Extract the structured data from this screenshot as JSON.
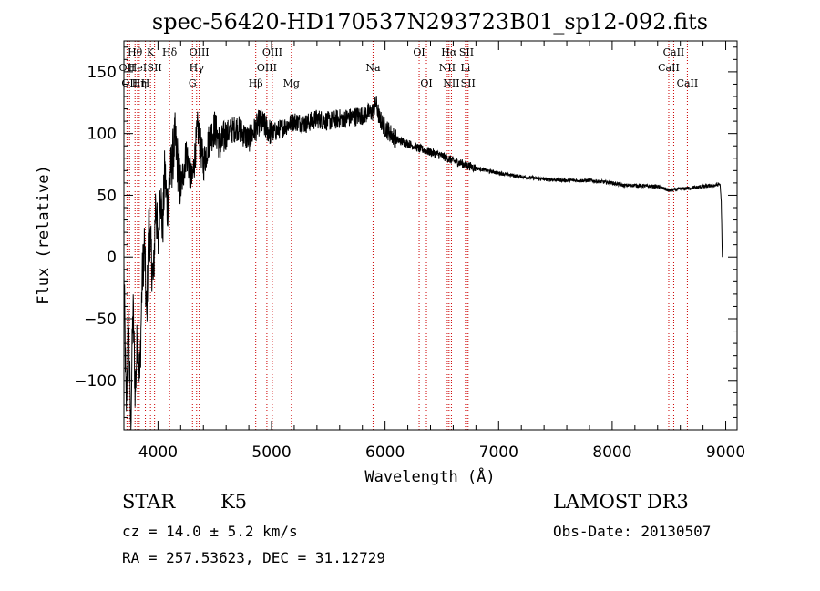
{
  "chart_data": {
    "type": "line",
    "title": "spec-56420-HD170537N293723B01_sp12-092.fits",
    "xlabel": "Wavelength (Å)",
    "ylabel": "Flux (relative)",
    "xlim": [
      3700,
      9100
    ],
    "ylim": [
      -140,
      175
    ],
    "xticks": [
      4000,
      5000,
      6000,
      7000,
      8000,
      9000
    ],
    "yticks": [
      -100,
      -50,
      0,
      50,
      100,
      150
    ],
    "series": [
      {
        "name": "flux",
        "x": [
          3700,
          3720,
          3740,
          3760,
          3780,
          3800,
          3820,
          3840,
          3860,
          3880,
          3900,
          3920,
          3940,
          3960,
          3980,
          4000,
          4020,
          4040,
          4060,
          4080,
          4100,
          4150,
          4200,
          4250,
          4300,
          4350,
          4400,
          4450,
          4500,
          4550,
          4600,
          4700,
          4800,
          4900,
          5000,
          5100,
          5200,
          5300,
          5400,
          5500,
          5600,
          5700,
          5800,
          5900,
          5920,
          5950,
          6000,
          6100,
          6200,
          6300,
          6400,
          6500,
          6600,
          6700,
          6800,
          6900,
          7000,
          7200,
          7400,
          7600,
          7800,
          8000,
          8100,
          8200,
          8400,
          8500,
          8600,
          8700,
          8800,
          8900,
          8950,
          8960,
          8970
        ],
        "values": [
          -10,
          -125,
          -50,
          -138,
          -40,
          -110,
          -60,
          -100,
          -20,
          10,
          -50,
          30,
          0,
          -20,
          50,
          5,
          60,
          20,
          70,
          40,
          60,
          95,
          55,
          85,
          60,
          105,
          75,
          95,
          105,
          90,
          100,
          105,
          95,
          110,
          100,
          105,
          110,
          108,
          112,
          110,
          112,
          113,
          115,
          118,
          125,
          112,
          105,
          95,
          92,
          88,
          85,
          82,
          78,
          75,
          72,
          70,
          68,
          65,
          63,
          62,
          62,
          60,
          58,
          58,
          57,
          54,
          55,
          56,
          57,
          58,
          59,
          45,
          0
        ]
      }
    ],
    "lines": [
      {
        "wl": 3727,
        "label": "OII",
        "row": 2
      },
      {
        "wl": 3750,
        "label": "OII",
        "row": 3
      },
      {
        "wl": 3798,
        "label": "Hθ",
        "row": 1
      },
      {
        "wl": 3820,
        "label": "HeI",
        "row": 2
      },
      {
        "wl": 3835,
        "label": "Hη",
        "row": 3
      },
      {
        "wl": 3889,
        "label": "H",
        "row": 3
      },
      {
        "wl": 3934,
        "label": "K",
        "row": 1
      },
      {
        "wl": 3970,
        "label": "SII",
        "row": 2
      },
      {
        "wl": 4102,
        "label": "Hδ",
        "row": 1
      },
      {
        "wl": 4304,
        "label": "G",
        "row": 3
      },
      {
        "wl": 4340,
        "label": "Hγ",
        "row": 2
      },
      {
        "wl": 4363,
        "label": "OIII",
        "row": 1
      },
      {
        "wl": 4861,
        "label": "Hβ",
        "row": 3
      },
      {
        "wl": 4959,
        "label": "OIII",
        "row": 2
      },
      {
        "wl": 5007,
        "label": "OIII",
        "row": 1
      },
      {
        "wl": 5175,
        "label": "Mg",
        "row": 3
      },
      {
        "wl": 5894,
        "label": "Na",
        "row": 2
      },
      {
        "wl": 6300,
        "label": "OI",
        "row": 1
      },
      {
        "wl": 6364,
        "label": "OI",
        "row": 3
      },
      {
        "wl": 6548,
        "label": "NII",
        "row": 2
      },
      {
        "wl": 6563,
        "label": "Hα",
        "row": 1
      },
      {
        "wl": 6584,
        "label": "NII",
        "row": 3
      },
      {
        "wl": 6708,
        "label": "Li",
        "row": 2
      },
      {
        "wl": 6717,
        "label": "SII",
        "row": 1
      },
      {
        "wl": 6731,
        "label": "SII",
        "row": 3
      },
      {
        "wl": 8498,
        "label": "CaII",
        "row": 2
      },
      {
        "wl": 8542,
        "label": "CaII",
        "row": 1
      },
      {
        "wl": 8662,
        "label": "CaII",
        "row": 3
      }
    ]
  },
  "info": {
    "class": "STAR",
    "subclass": "K5",
    "survey": "LAMOST DR3",
    "cz": "cz = 14.0 ± 5.2 km/s",
    "obs_date": "Obs-Date: 20130507",
    "radec": "RA = 257.53623, DEC =  31.12729"
  }
}
